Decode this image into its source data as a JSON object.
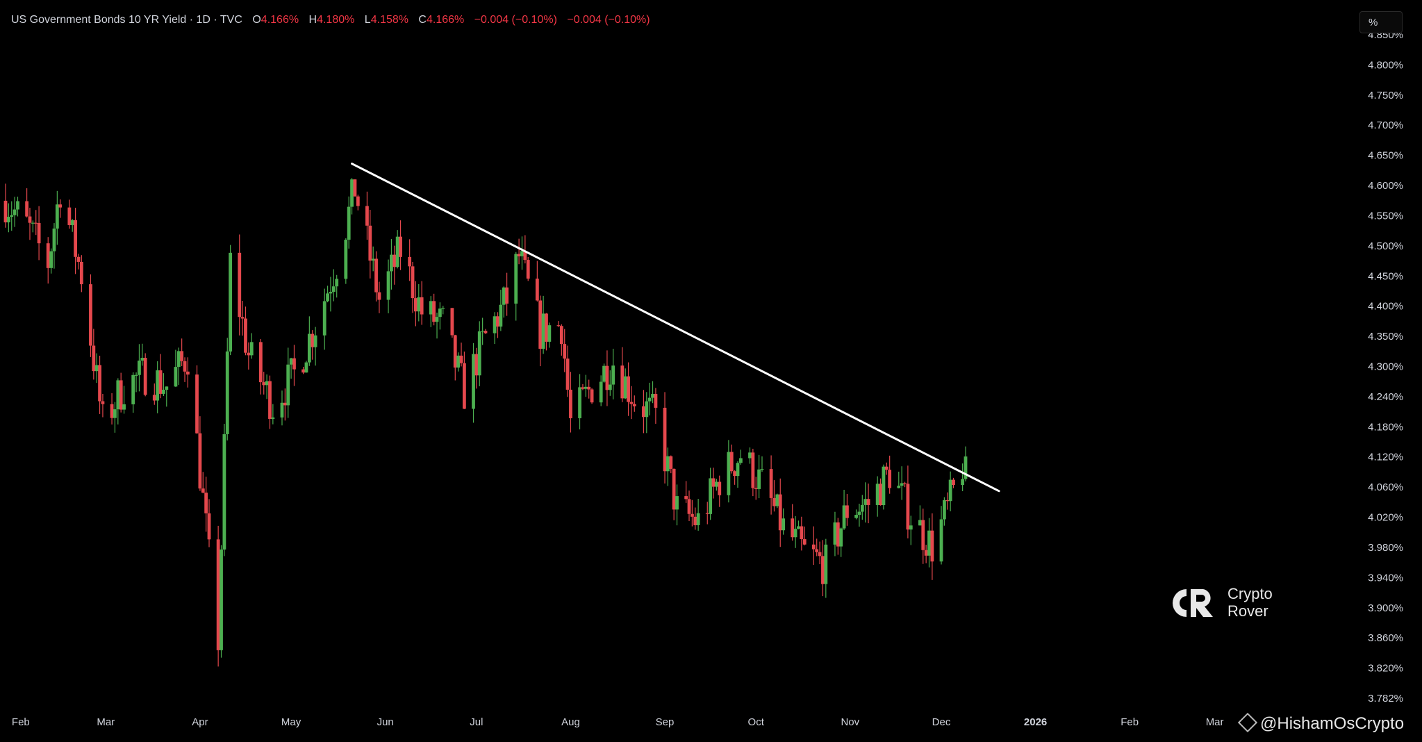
{
  "legend": {
    "symbol": "US Government Bonds 10 YR Yield · 1D · TVC",
    "open_label": "O",
    "open": "4.166%",
    "high_label": "H",
    "high": "4.180%",
    "low_label": "L",
    "low": "4.158%",
    "close_label": "C",
    "close": "4.166%",
    "change1": "−0.004 (−0.10%)",
    "change2": "−0.004 (−0.10%)"
  },
  "unit_button": "%",
  "logo": {
    "line1": "Crypto",
    "line2": "Rover"
  },
  "watermark": "@HishamOsCrypto",
  "colors": {
    "up": "#4caf50",
    "down": "#e5484d",
    "background": "#000000",
    "trendline": "#ffffff"
  },
  "chart_data": {
    "type": "candlestick",
    "ylim": [
      3.76,
      4.86
    ],
    "y_ticks": [
      "4.850%",
      "4.800%",
      "4.750%",
      "4.700%",
      "4.650%",
      "4.600%",
      "4.550%",
      "4.500%",
      "4.450%",
      "4.400%",
      "4.350%",
      "4.300%",
      "4.240%",
      "4.180%",
      "4.120%",
      "4.060%",
      "4.020%",
      "3.980%",
      "3.940%",
      "3.900%",
      "3.860%",
      "3.820%",
      "3.782%"
    ],
    "x_ticks": [
      "Feb",
      "Mar",
      "Apr",
      "May",
      "Jun",
      "Jul",
      "Aug",
      "Sep",
      "Oct",
      "Nov",
      "Dec",
      "2026",
      "Feb",
      "Mar"
    ],
    "year_tick": "2026",
    "close_path": [
      {
        "date": "2025-01-27",
        "value": 4.58
      },
      {
        "date": "2025-02-03",
        "value": 4.54
      },
      {
        "date": "2025-02-10",
        "value": 4.48
      },
      {
        "date": "2025-02-14",
        "value": 4.6
      },
      {
        "date": "2025-02-21",
        "value": 4.46
      },
      {
        "date": "2025-02-28",
        "value": 4.22
      },
      {
        "date": "2025-03-07",
        "value": 4.28
      },
      {
        "date": "2025-03-14",
        "value": 4.3
      },
      {
        "date": "2025-03-21",
        "value": 4.28
      },
      {
        "date": "2025-03-28",
        "value": 4.33
      },
      {
        "date": "2025-04-04",
        "value": 4.0
      },
      {
        "date": "2025-04-07",
        "value": 3.87
      },
      {
        "date": "2025-04-11",
        "value": 4.48
      },
      {
        "date": "2025-04-17",
        "value": 4.33
      },
      {
        "date": "2025-04-25",
        "value": 4.25
      },
      {
        "date": "2025-05-02",
        "value": 4.3
      },
      {
        "date": "2025-05-09",
        "value": 4.38
      },
      {
        "date": "2025-05-16",
        "value": 4.48
      },
      {
        "date": "2025-05-22",
        "value": 4.6
      },
      {
        "date": "2025-05-30",
        "value": 4.42
      },
      {
        "date": "2025-06-06",
        "value": 4.5
      },
      {
        "date": "2025-06-13",
        "value": 4.4
      },
      {
        "date": "2025-06-20",
        "value": 4.38
      },
      {
        "date": "2025-06-27",
        "value": 4.27
      },
      {
        "date": "2025-07-03",
        "value": 4.35
      },
      {
        "date": "2025-07-11",
        "value": 4.42
      },
      {
        "date": "2025-07-15",
        "value": 4.49
      },
      {
        "date": "2025-07-22",
        "value": 4.37
      },
      {
        "date": "2025-07-29",
        "value": 4.38
      },
      {
        "date": "2025-08-01",
        "value": 4.22
      },
      {
        "date": "2025-08-08",
        "value": 4.28
      },
      {
        "date": "2025-08-15",
        "value": 4.32
      },
      {
        "date": "2025-08-22",
        "value": 4.26
      },
      {
        "date": "2025-08-29",
        "value": 4.23
      },
      {
        "date": "2025-09-05",
        "value": 4.08
      },
      {
        "date": "2025-09-12",
        "value": 4.06
      },
      {
        "date": "2025-09-19",
        "value": 4.13
      },
      {
        "date": "2025-09-26",
        "value": 4.17
      },
      {
        "date": "2025-10-03",
        "value": 4.12
      },
      {
        "date": "2025-10-10",
        "value": 4.05
      },
      {
        "date": "2025-10-17",
        "value": 4.01
      },
      {
        "date": "2025-10-24",
        "value": 3.99
      },
      {
        "date": "2025-10-31",
        "value": 4.08
      },
      {
        "date": "2025-11-07",
        "value": 4.09
      },
      {
        "date": "2025-11-14",
        "value": 4.14
      },
      {
        "date": "2025-11-21",
        "value": 4.07
      },
      {
        "date": "2025-11-28",
        "value": 4.02
      },
      {
        "date": "2025-12-03",
        "value": 4.08
      },
      {
        "date": "2025-12-09",
        "value": 4.166
      }
    ],
    "trendline": {
      "from": {
        "date": "2025-05-21",
        "value": 4.64
      },
      "to": {
        "date": "2025-12-20",
        "value": 4.11
      }
    }
  }
}
